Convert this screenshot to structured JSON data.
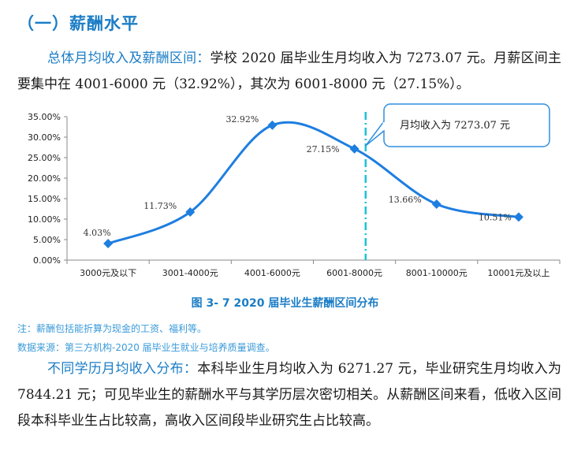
{
  "heading": "（一）薪酬水平",
  "para1": {
    "lead": "总体月均收入及薪酬区间：",
    "body": "学校 2020 届毕业生月均收入为 7273.07 元。月薪区间主要集中在 4001-6000 元（32.92%），其次为 6001-8000 元（27.15%）。"
  },
  "chart_data": {
    "type": "line",
    "categories": [
      "3000元及以下",
      "3001-4000元",
      "4001-6000元",
      "6001-8000元",
      "8001-10000元",
      "10001元及以上"
    ],
    "values": [
      4.03,
      11.73,
      32.92,
      27.15,
      13.66,
      10.51
    ],
    "value_labels": [
      "4.03%",
      "11.73%",
      "32.92%",
      "27.15%",
      "13.66%",
      "10.51%"
    ],
    "y_ticks": [
      "0.00%",
      "5.00%",
      "10.00%",
      "15.00%",
      "20.00%",
      "25.00%",
      "30.00%",
      "35.00%"
    ],
    "ylim": [
      0,
      35
    ],
    "grid": false,
    "smooth": true,
    "marker": "diamond",
    "series_color": "#1e7ee0",
    "reference_line": {
      "value": 7273.07,
      "style": "dash-dot",
      "color": "#19c3d6"
    },
    "callout": "月均收入为 7273.07 元"
  },
  "caption": "图 3- 7    2020 届毕业生薪酬区间分布",
  "notes": [
    "注：薪酬包括能折算为现金的工资、福利等。",
    "数据来源：第三方机构-2020 届毕业生就业与培养质量调查。"
  ],
  "para2": {
    "lead": "不同学历月均收入分布：",
    "body": "本科毕业生月均收入为 6271.27 元，毕业研究生月均收入为 7844.21 元；可见毕业生的薪酬水平与其学历层次密切相关。从薪酬区间来看，低收入区间段本科毕业生占比较高，高收入区间段毕业研究生占比较高。"
  },
  "colors": {
    "accent": "#1b7dc6",
    "note": "#3a9ad9",
    "line": "#1e7ee0",
    "reference": "#19c3d6"
  }
}
